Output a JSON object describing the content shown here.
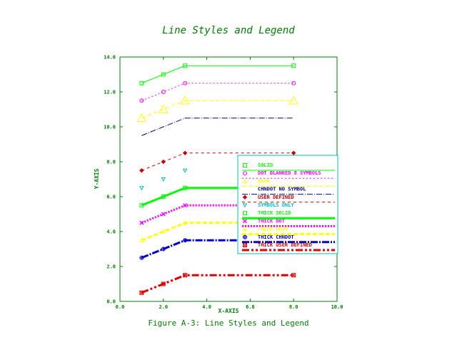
{
  "chart_data": {
    "type": "line",
    "title": "Line Styles and Legend",
    "xlabel": "X-AXIS",
    "ylabel": "Y-AXIS",
    "caption": "Figure A-3: Line Styles and Legend",
    "xlim": [
      0,
      10
    ],
    "ylim": [
      0,
      14
    ],
    "xticks": [
      "0.0",
      "2.0",
      "4.0",
      "6.0",
      "8.0",
      "10.0"
    ],
    "yticks": [
      "0.0",
      "2.0",
      "4.0",
      "6.0",
      "8.0",
      "10.0",
      "12.0",
      "14.0"
    ],
    "grid": false,
    "legend_position": "right",
    "x": [
      1,
      2,
      3,
      8
    ],
    "series": [
      {
        "name": "SOLID",
        "color": "#00ff00",
        "dash": "",
        "width": 1,
        "marker": "square",
        "y": [
          12.5,
          13,
          13.5,
          13.5
        ]
      },
      {
        "name": "DOT BLANKED 8 SYMBOLS",
        "color": "#ff00ff",
        "dash": "2,3",
        "width": 1,
        "marker": "circle",
        "y": [
          11.5,
          12,
          12.5,
          12.5
        ]
      },
      {
        "name": "DASH",
        "color": "#ffff00",
        "dash": "6,3",
        "width": 1,
        "marker": "triangle",
        "y": [
          10.5,
          11,
          11.5,
          11.5
        ]
      },
      {
        "name": "CHNDOT NO SYMBOL",
        "color": "#000080",
        "dash": "8,2,1,2",
        "width": 1,
        "marker": "none",
        "y": [
          9.5,
          10,
          10.5,
          10.5
        ]
      },
      {
        "name": "USER DEFINED",
        "color": "#cc0000",
        "dash": "4,4",
        "width": 1,
        "marker": "diamond",
        "y": [
          7.5,
          8,
          8.5,
          8.5
        ]
      },
      {
        "name": "SYMBOLS ONLY",
        "color": "#00c0c0",
        "dash": "",
        "width": 0,
        "marker": "inv-triangle",
        "y": [
          6.5,
          7,
          7.5,
          7.5
        ]
      },
      {
        "name": "THICK SOLID",
        "color": "#00ff00",
        "dash": "",
        "width": 3,
        "marker": "square",
        "y": [
          5.5,
          6,
          6.5,
          6.5
        ]
      },
      {
        "name": "THICK DOT",
        "color": "#ff00ff",
        "dash": "2,2",
        "width": 3,
        "marker": "x",
        "y": [
          4.5,
          5,
          5.5,
          5.5
        ]
      },
      {
        "name": "THICK DASH",
        "color": "#ffff00",
        "dash": "6,3",
        "width": 3,
        "marker": "triangle",
        "y": [
          3.5,
          4,
          4.5,
          4.5
        ]
      },
      {
        "name": "THICK CHNDOT",
        "color": "#0000cc",
        "dash": "10,2,2,2",
        "width": 3,
        "marker": "circle-plus",
        "y": [
          2.5,
          3,
          3.5,
          3.5
        ]
      },
      {
        "name": "THICK USER DEFINED",
        "color": "#e00000",
        "dash": "10,3,3,3,3,3",
        "width": 3,
        "marker": "square-x",
        "y": [
          0.5,
          1,
          1.5,
          1.5
        ]
      }
    ]
  }
}
